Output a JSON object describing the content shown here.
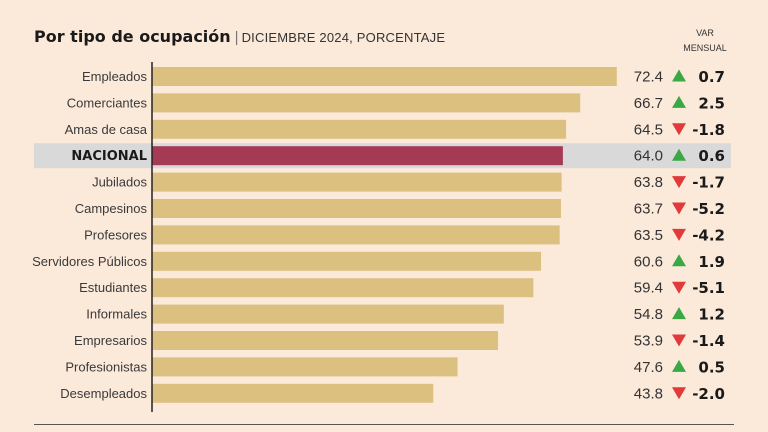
{
  "header": {
    "title": "Por tipo de ocupación",
    "separator": "|",
    "subtitle": "DICIEMBRE 2024, PORCENTAJE"
  },
  "var_header": {
    "line1": "VAR",
    "line2": "MENSUAL"
  },
  "colors": {
    "bar": "#dcc080",
    "bar_highlight": "#a53a55",
    "highlight_row_bg": "#d9d9d9",
    "up": "#39a845",
    "down": "#e03a3a",
    "axis": "#222222"
  },
  "chart_data": {
    "type": "bar",
    "orientation": "horizontal",
    "title": "Por tipo de ocupación",
    "subtitle": "DICIEMBRE 2024, PORCENTAJE",
    "xlim": [
      0,
      80
    ],
    "grid": false,
    "highlight_category": "NACIONAL",
    "categories": [
      "Empleados",
      "Comerciantes",
      "Amas de casa",
      "NACIONAL",
      "Jubilados",
      "Campesinos",
      "Profesores",
      "Servidores Públicos",
      "Estudiantes",
      "Informales",
      "Empresarios",
      "Profesionistas",
      "Desempleados"
    ],
    "values": [
      72.4,
      66.7,
      64.5,
      64.0,
      63.8,
      63.7,
      63.5,
      60.6,
      59.4,
      54.8,
      53.9,
      47.6,
      43.8
    ],
    "value_labels": [
      "72.4",
      "66.7",
      "64.5",
      "64.0",
      "63.8",
      "63.7",
      "63.5",
      "60.6",
      "59.4",
      "54.8",
      "53.9",
      "47.6",
      "43.8"
    ],
    "change_header": "VAR MENSUAL",
    "changes": [
      0.7,
      2.5,
      -1.8,
      0.6,
      -1.7,
      -5.2,
      -4.2,
      1.9,
      -5.1,
      1.2,
      -1.4,
      0.5,
      -2.0
    ],
    "change_labels": [
      "0.7",
      "2.5",
      "-1.8",
      "0.6",
      "-1.7",
      "-5.2",
      "-4.2",
      "1.9",
      "-5.1",
      "1.2",
      "-1.4",
      "0.5",
      "-2.0"
    ]
  }
}
